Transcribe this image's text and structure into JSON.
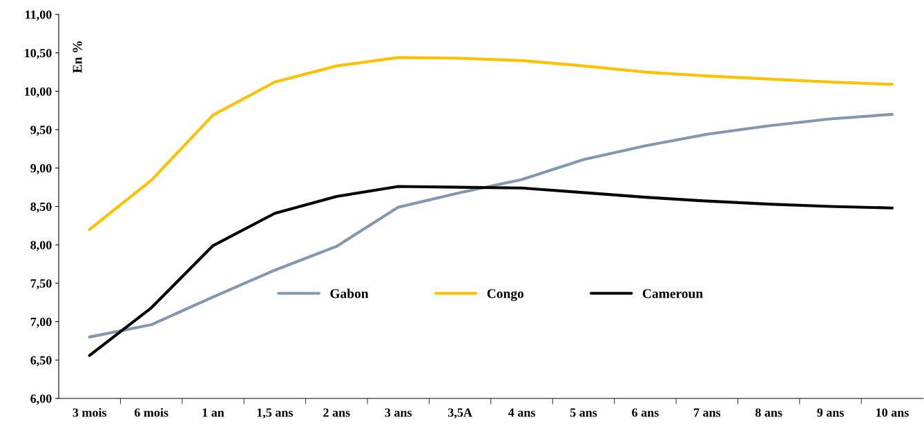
{
  "chart_data": {
    "type": "line",
    "ylabel": "En %",
    "categories": [
      "3 mois",
      "6 mois",
      "1 an",
      "1,5 ans",
      "2 ans",
      "3 ans",
      "3,5A",
      "4 ans",
      "5 ans",
      "6 ans",
      "7 ans",
      "8 ans",
      "9 ans",
      "10 ans"
    ],
    "series": [
      {
        "name": "Gabon",
        "color": "#8497b0",
        "values": [
          6.8,
          6.96,
          7.32,
          7.67,
          7.98,
          8.49,
          8.68,
          8.85,
          9.11,
          9.29,
          9.44,
          9.55,
          9.64,
          9.7
        ]
      },
      {
        "name": "Congo",
        "color": "#ffc000",
        "values": [
          8.2,
          8.84,
          9.69,
          10.12,
          10.33,
          10.44,
          10.43,
          10.4,
          10.33,
          10.25,
          10.2,
          10.16,
          10.12,
          10.09
        ]
      },
      {
        "name": "Cameroun",
        "color": "#000000",
        "values": [
          6.56,
          7.18,
          7.99,
          8.41,
          8.63,
          8.76,
          8.75,
          8.74,
          8.68,
          8.62,
          8.57,
          8.53,
          8.5,
          8.48
        ]
      }
    ],
    "ylim": [
      6,
      11
    ],
    "yticks": [
      {
        "value": 6,
        "label": "6,00"
      },
      {
        "value": 6.5,
        "label": "6,50"
      },
      {
        "value": 7,
        "label": "7,00"
      },
      {
        "value": 7.5,
        "label": "7,50"
      },
      {
        "value": 8,
        "label": "8,00"
      },
      {
        "value": 8.5,
        "label": "8,50"
      },
      {
        "value": 9,
        "label": "9,00"
      },
      {
        "value": 9.5,
        "label": "9,50"
      },
      {
        "value": 10,
        "label": "10,00"
      },
      {
        "value": 10.5,
        "label": "10,50"
      },
      {
        "value": 11,
        "label": "11,00"
      }
    ],
    "grid": false,
    "legend": "center",
    "marker": "none",
    "line_style": "solid"
  }
}
